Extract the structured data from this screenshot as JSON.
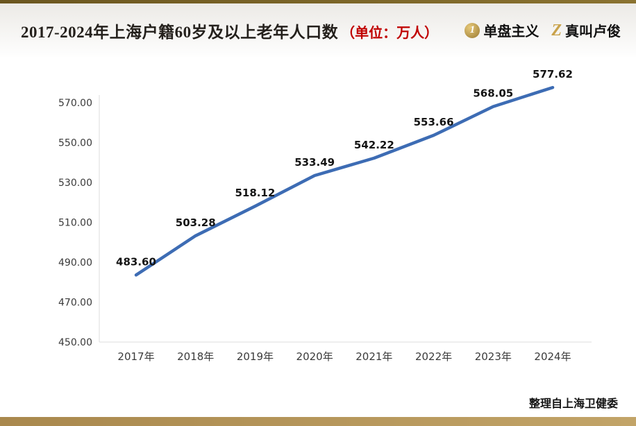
{
  "header": {
    "title": "2017-2024年上海户籍60岁及以上老年人口数",
    "unit_label": "（单位：万人）",
    "brands": [
      {
        "icon": "coin-1-icon",
        "icon_glyph": "1",
        "label": "单盘主义"
      },
      {
        "icon": "z-logo-icon",
        "icon_glyph": "Z",
        "label": "真叫卢俊"
      }
    ]
  },
  "footer": {
    "source": "整理自上海卫健委"
  },
  "chart_data": {
    "type": "line",
    "title": "2017-2024年上海户籍60岁及以上老年人口数（单位：万人）",
    "categories": [
      "2017年",
      "2018年",
      "2019年",
      "2020年",
      "2021年",
      "2022年",
      "2023年",
      "2024年"
    ],
    "values": [
      483.6,
      503.28,
      518.12,
      533.49,
      542.22,
      553.66,
      568.05,
      577.62
    ],
    "data_labels": [
      "483.60",
      "503.28",
      "518.12",
      "533.49",
      "542.22",
      "553.66",
      "568.05",
      "577.62"
    ],
    "xlabel": "",
    "ylabel": "",
    "yticks": [
      450,
      470,
      490,
      510,
      530,
      550,
      570
    ],
    "ytick_labels": [
      "450.00",
      "470.00",
      "490.00",
      "510.00",
      "530.00",
      "550.00",
      "570.00"
    ],
    "ylim": [
      450,
      585
    ],
    "grid": false,
    "legend": "none",
    "line_color": "#3d6cb4",
    "axis_color": "#dcdcdc",
    "tick_label_color": "#3a3a3a",
    "data_label_color": "#141414"
  }
}
